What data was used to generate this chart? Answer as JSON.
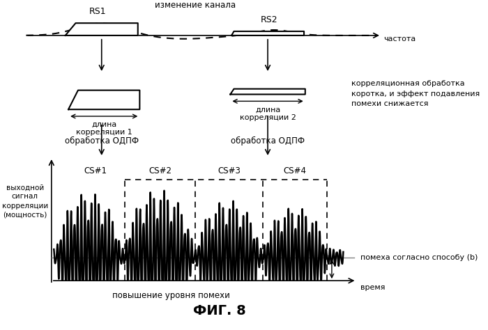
{
  "bg_color": "#ffffff",
  "text_color": "#000000",
  "fig_width": 7.0,
  "fig_height": 4.74,
  "dpi": 100,
  "top_label": "изменение канала",
  "rs1_label": "RS1",
  "rs2_label": "RS2",
  "freq_label": "частота",
  "corr_label1": "длина\nкорреляции 1",
  "corr_label2": "длина\nкорреляции 2",
  "odpf_label1": "обработка ОДПФ",
  "odpf_label2": "обработка ОДПФ",
  "right_text": "корреляционная обработка\nкоротка, и эффект подавления\nпомехи снижается",
  "y_label": "выходной\nсигнал\nкорреляции\n(мощность)",
  "cs_labels": [
    "CS#1",
    "CS#2",
    "CS#3",
    "CS#4"
  ],
  "noise_label": "помеха согласно способу (b)",
  "time_label": "время",
  "bottom_label": "повышение уровня помехи",
  "fig_label": "ФИГ. 8"
}
